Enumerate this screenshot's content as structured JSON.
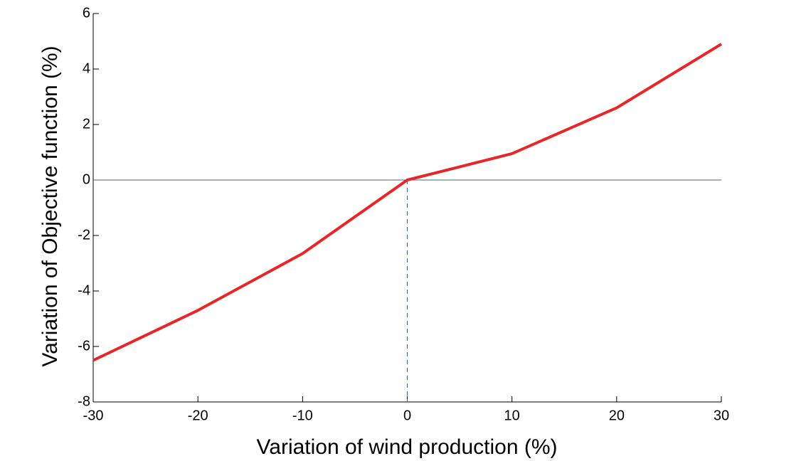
{
  "chart_data": {
    "type": "line",
    "x_label": "Variation of wind production (%)",
    "y_label": "Variation of Objective function (%)",
    "x": [
      -30,
      -20,
      -10,
      0,
      10,
      20,
      30
    ],
    "series": [
      {
        "name": "Variation of Objective function",
        "color": "#e8262a",
        "values": [
          -6.5,
          -4.7,
          -2.65,
          0,
          0.95,
          2.6,
          4.9
        ]
      }
    ],
    "xlim": [
      -30,
      30
    ],
    "xticks": [
      -30,
      -20,
      -10,
      0,
      10,
      20,
      30
    ],
    "ylim": [
      -8,
      6
    ],
    "yticks": [
      -8,
      -6,
      -4,
      -2,
      0,
      2,
      4,
      6
    ],
    "hline": 0,
    "vline": 0
  }
}
